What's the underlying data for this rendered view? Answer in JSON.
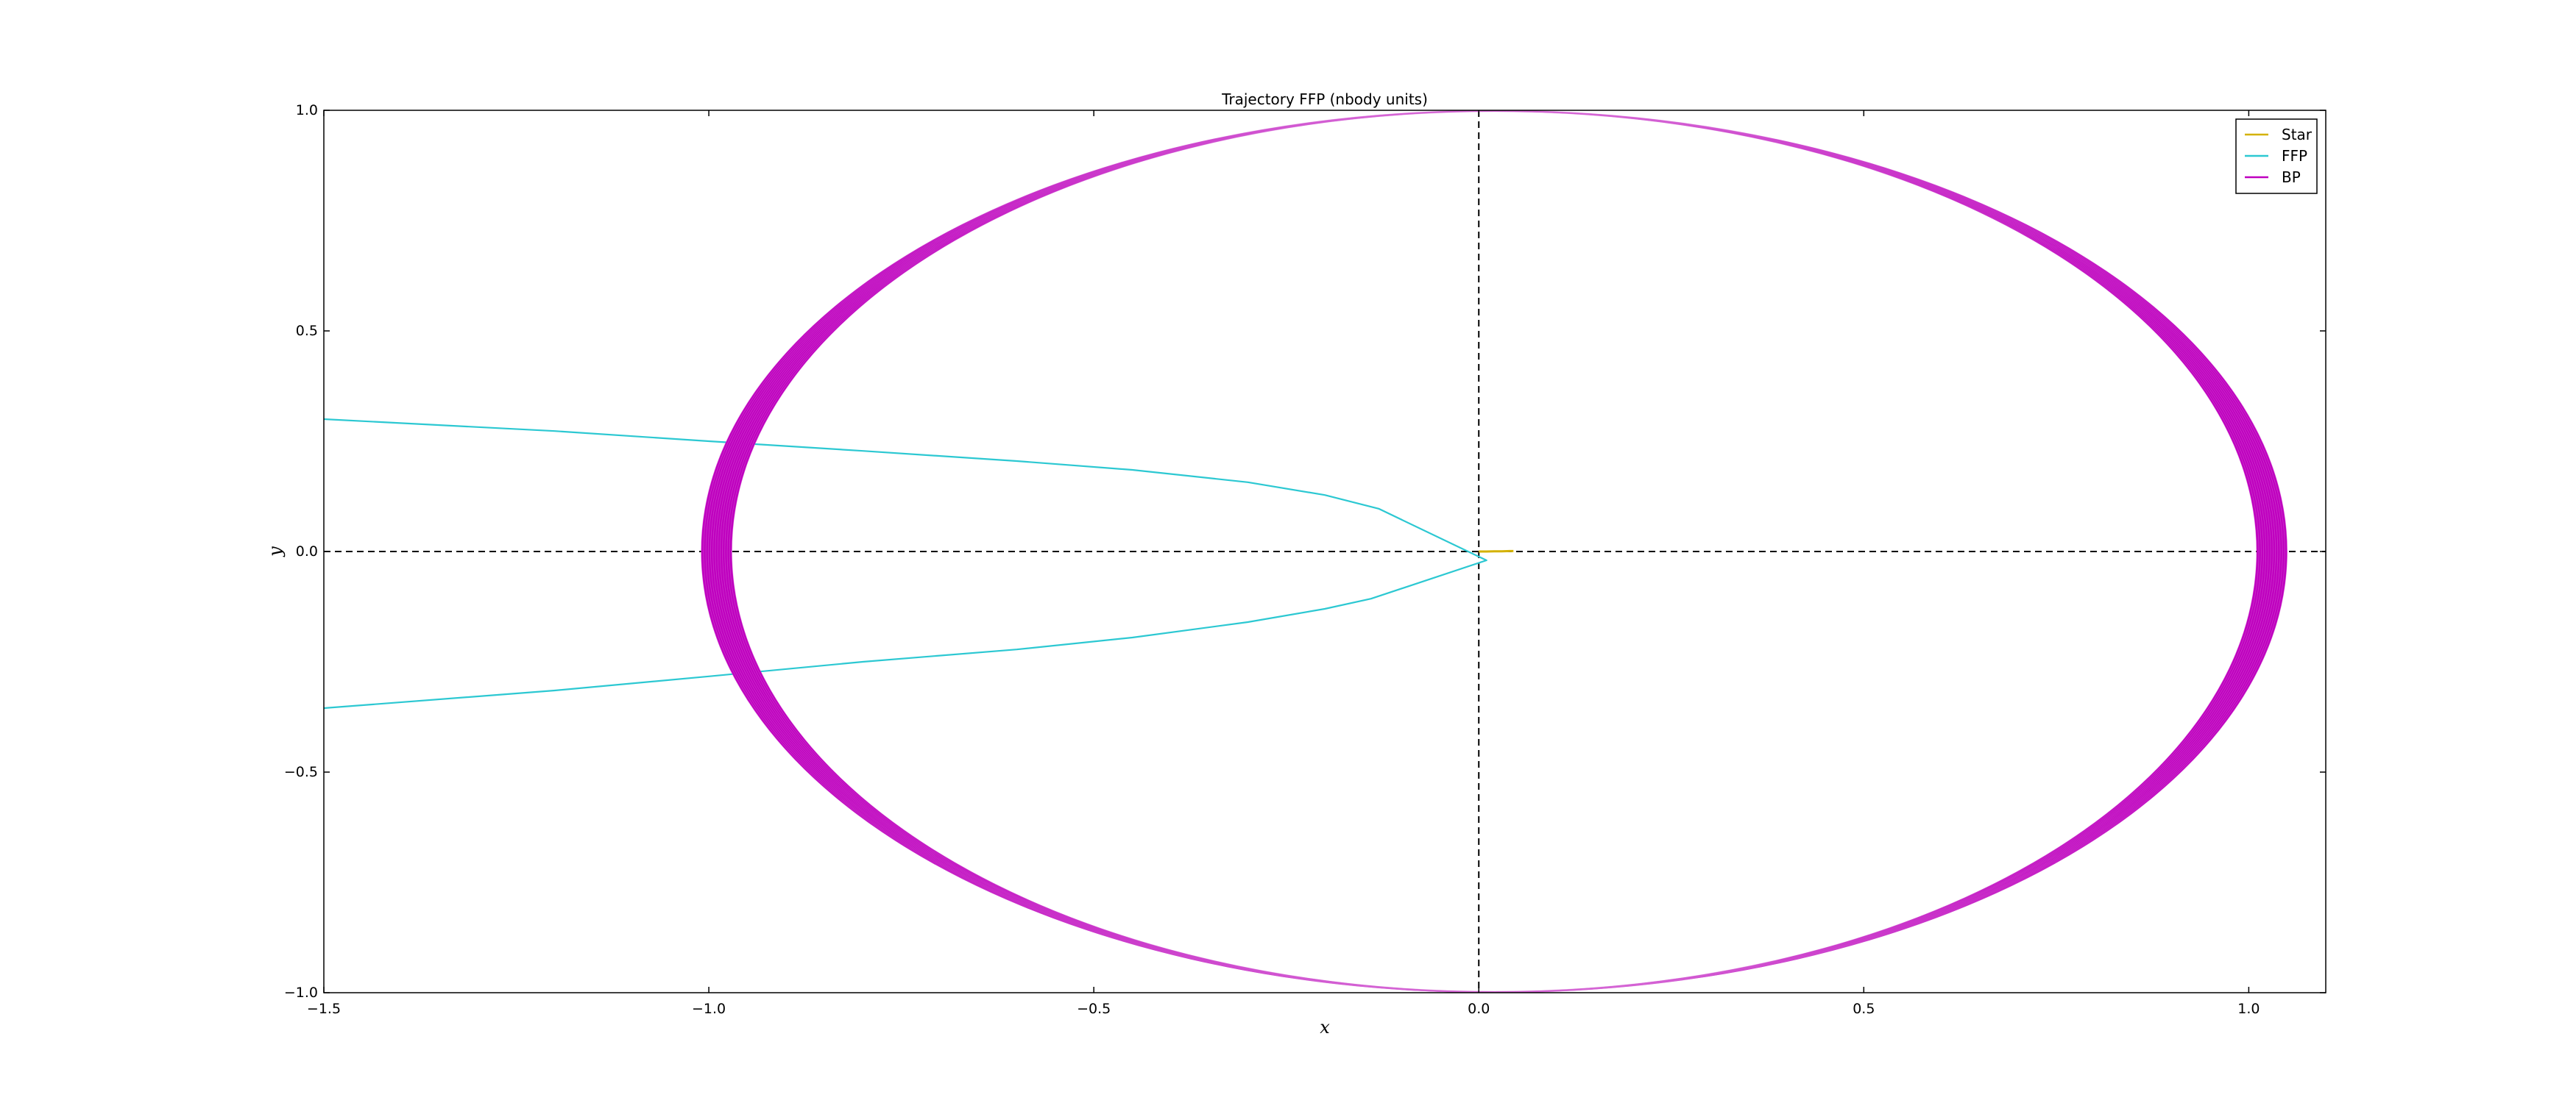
{
  "chart_data": {
    "type": "line",
    "title": "Trajectory FFP (nbody units)",
    "xlabel": "x",
    "ylabel": "y",
    "xlim": [
      -1.5,
      1.1
    ],
    "ylim": [
      -1.0,
      1.0
    ],
    "xticks": [
      -1.5,
      -1.0,
      -0.5,
      0.0,
      0.5,
      1.0
    ],
    "yticks": [
      -1.0,
      -0.5,
      0.0,
      0.5,
      1.0
    ],
    "xtick_labels": [
      "−1.5",
      "−1.0",
      "−0.5",
      "0.0",
      "0.5",
      "1.0"
    ],
    "ytick_labels": [
      "−1.0",
      "−0.5",
      "0.0",
      "0.5",
      "1.0"
    ],
    "grid": false,
    "reference_lines": {
      "x": 0.0,
      "y": 0.0,
      "style": "dashed",
      "color": "#000000"
    },
    "legend": {
      "placement": "top-right",
      "entries": [
        {
          "label": "Star",
          "color": "#d4b200"
        },
        {
          "label": "FFP",
          "color": "#2cc8d2"
        },
        {
          "label": "BP",
          "color": "#bf00bf"
        }
      ]
    },
    "series": [
      {
        "name": "Star",
        "color": "#d4b200",
        "x": [
          0.0,
          0.01,
          0.02,
          0.03,
          0.04,
          0.045
        ],
        "y": [
          0.0,
          0.0,
          0.0005,
          0.0005,
          0.001,
          0.001
        ]
      },
      {
        "name": "FFP",
        "color": "#2cc8d2",
        "x": [
          -1.5,
          -1.2,
          -1.0,
          -0.8,
          -0.6,
          -0.45,
          -0.3,
          -0.2,
          -0.13,
          0.01,
          -0.14,
          -0.2,
          -0.3,
          -0.45,
          -0.6,
          -0.8,
          -1.0,
          -1.2,
          -1.5
        ],
        "y": [
          0.3,
          0.273,
          0.25,
          0.228,
          0.205,
          0.185,
          0.157,
          0.128,
          0.097,
          -0.02,
          -0.107,
          -0.13,
          -0.16,
          -0.195,
          -0.222,
          -0.25,
          -0.283,
          -0.315,
          -0.355
        ]
      },
      {
        "name": "BP",
        "color": "#bf00bf",
        "shape": "ellipse-band",
        "center": [
          0.02,
          0.0
        ],
        "semi_major_x": [
          0.99,
          1.03
        ],
        "semi_major_y": [
          0.997,
          1.0
        ]
      }
    ]
  }
}
